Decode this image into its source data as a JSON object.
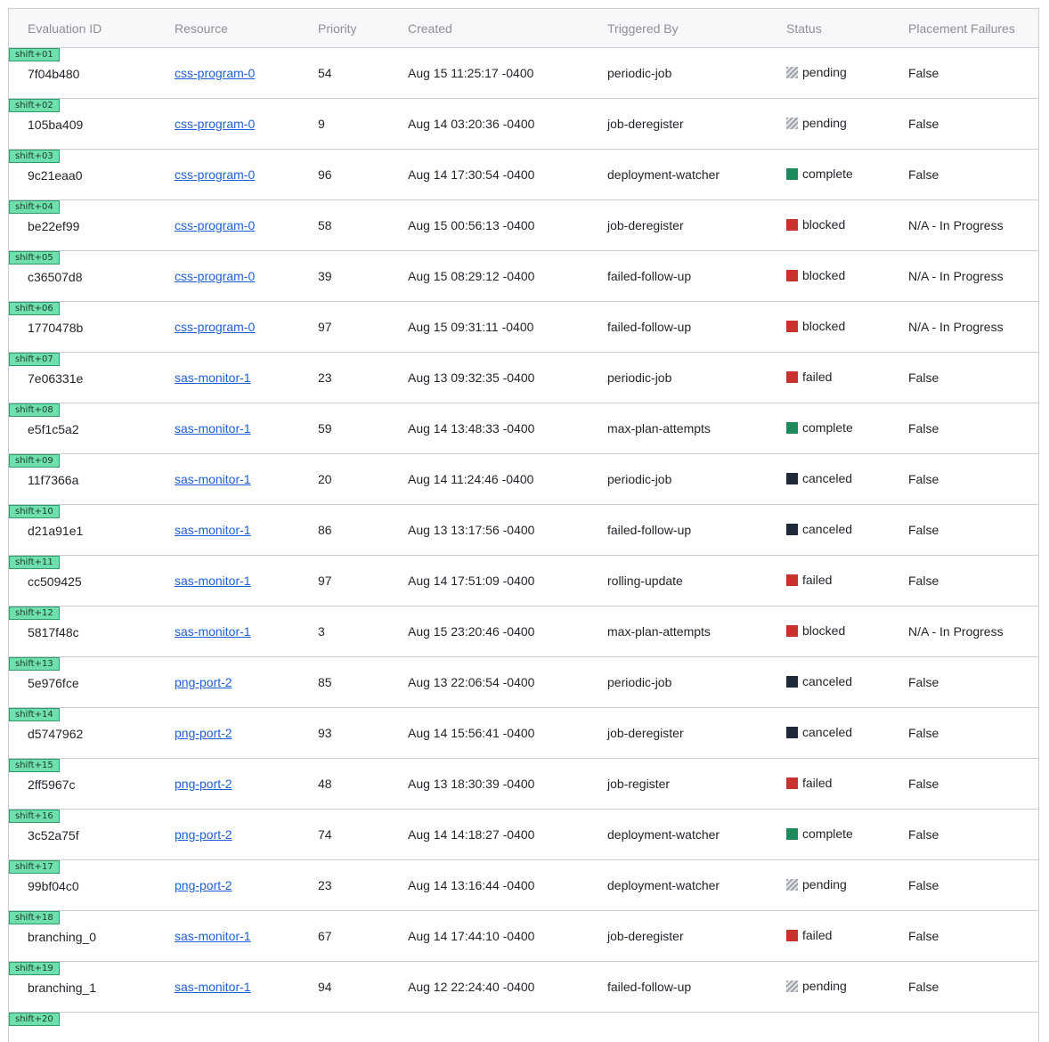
{
  "columns": [
    "Evaluation ID",
    "Resource",
    "Priority",
    "Created",
    "Triggered By",
    "Status",
    "Placement Failures"
  ],
  "rows": [
    {
      "shift": "shift+01",
      "id": "7f04b480",
      "resource": "css-program-0",
      "priority": "54",
      "created": "Aug 15 11:25:17 -0400",
      "triggered_by": "periodic-job",
      "status": "pending",
      "placement": "False"
    },
    {
      "shift": "shift+02",
      "id": "105ba409",
      "resource": "css-program-0",
      "priority": "9",
      "created": "Aug 14 03:20:36 -0400",
      "triggered_by": "job-deregister",
      "status": "pending",
      "placement": "False"
    },
    {
      "shift": "shift+03",
      "id": "9c21eaa0",
      "resource": "css-program-0",
      "priority": "96",
      "created": "Aug 14 17:30:54 -0400",
      "triggered_by": "deployment-watcher",
      "status": "complete",
      "placement": "False"
    },
    {
      "shift": "shift+04",
      "id": "be22ef99",
      "resource": "css-program-0",
      "priority": "58",
      "created": "Aug 15 00:56:13 -0400",
      "triggered_by": "job-deregister",
      "status": "blocked",
      "placement": "N/A - In Progress"
    },
    {
      "shift": "shift+05",
      "id": "c36507d8",
      "resource": "css-program-0",
      "priority": "39",
      "created": "Aug 15 08:29:12 -0400",
      "triggered_by": "failed-follow-up",
      "status": "blocked",
      "placement": "N/A - In Progress"
    },
    {
      "shift": "shift+06",
      "id": "1770478b",
      "resource": "css-program-0",
      "priority": "97",
      "created": "Aug 15 09:31:11 -0400",
      "triggered_by": "failed-follow-up",
      "status": "blocked",
      "placement": "N/A - In Progress"
    },
    {
      "shift": "shift+07",
      "id": "7e06331e",
      "resource": "sas-monitor-1",
      "priority": "23",
      "created": "Aug 13 09:32:35 -0400",
      "triggered_by": "periodic-job",
      "status": "failed",
      "placement": "False"
    },
    {
      "shift": "shift+08",
      "id": "e5f1c5a2",
      "resource": "sas-monitor-1",
      "priority": "59",
      "created": "Aug 14 13:48:33 -0400",
      "triggered_by": "max-plan-attempts",
      "status": "complete",
      "placement": "False"
    },
    {
      "shift": "shift+09",
      "id": "11f7366a",
      "resource": "sas-monitor-1",
      "priority": "20",
      "created": "Aug 14 11:24:46 -0400",
      "triggered_by": "periodic-job",
      "status": "canceled",
      "placement": "False"
    },
    {
      "shift": "shift+10",
      "id": "d21a91e1",
      "resource": "sas-monitor-1",
      "priority": "86",
      "created": "Aug 13 13:17:56 -0400",
      "triggered_by": "failed-follow-up",
      "status": "canceled",
      "placement": "False"
    },
    {
      "shift": "shift+11",
      "id": "cc509425",
      "resource": "sas-monitor-1",
      "priority": "97",
      "created": "Aug 14 17:51:09 -0400",
      "triggered_by": "rolling-update",
      "status": "failed",
      "placement": "False"
    },
    {
      "shift": "shift+12",
      "id": "5817f48c",
      "resource": "sas-monitor-1",
      "priority": "3",
      "created": "Aug 15 23:20:46 -0400",
      "triggered_by": "max-plan-attempts",
      "status": "blocked",
      "placement": "N/A - In Progress"
    },
    {
      "shift": "shift+13",
      "id": "5e976fce",
      "resource": "png-port-2",
      "priority": "85",
      "created": "Aug 13 22:06:54 -0400",
      "triggered_by": "periodic-job",
      "status": "canceled",
      "placement": "False"
    },
    {
      "shift": "shift+14",
      "id": "d5747962",
      "resource": "png-port-2",
      "priority": "93",
      "created": "Aug 14 15:56:41 -0400",
      "triggered_by": "job-deregister",
      "status": "canceled",
      "placement": "False"
    },
    {
      "shift": "shift+15",
      "id": "2ff5967c",
      "resource": "png-port-2",
      "priority": "48",
      "created": "Aug 13 18:30:39 -0400",
      "triggered_by": "job-register",
      "status": "failed",
      "placement": "False"
    },
    {
      "shift": "shift+16",
      "id": "3c52a75f",
      "resource": "png-port-2",
      "priority": "74",
      "created": "Aug 14 14:18:27 -0400",
      "triggered_by": "deployment-watcher",
      "status": "complete",
      "placement": "False"
    },
    {
      "shift": "shift+17",
      "id": "99bf04c0",
      "resource": "png-port-2",
      "priority": "23",
      "created": "Aug 14 13:16:44 -0400",
      "triggered_by": "deployment-watcher",
      "status": "pending",
      "placement": "False"
    },
    {
      "shift": "shift+18",
      "id": "branching_0",
      "resource": "sas-monitor-1",
      "priority": "67",
      "created": "Aug 14 17:44:10 -0400",
      "triggered_by": "job-deregister",
      "status": "failed",
      "placement": "False"
    },
    {
      "shift": "shift+19",
      "id": "branching_1",
      "resource": "sas-monitor-1",
      "priority": "94",
      "created": "Aug 12 22:24:40 -0400",
      "triggered_by": "failed-follow-up",
      "status": "pending",
      "placement": "False"
    }
  ],
  "partial_row": {
    "shift": "shift+20"
  },
  "status_colors": {
    "complete": "#1c8a5a",
    "blocked": "#c7332f",
    "failed": "#c7332f",
    "canceled": "#1f2937",
    "pending": "striped-gray"
  }
}
